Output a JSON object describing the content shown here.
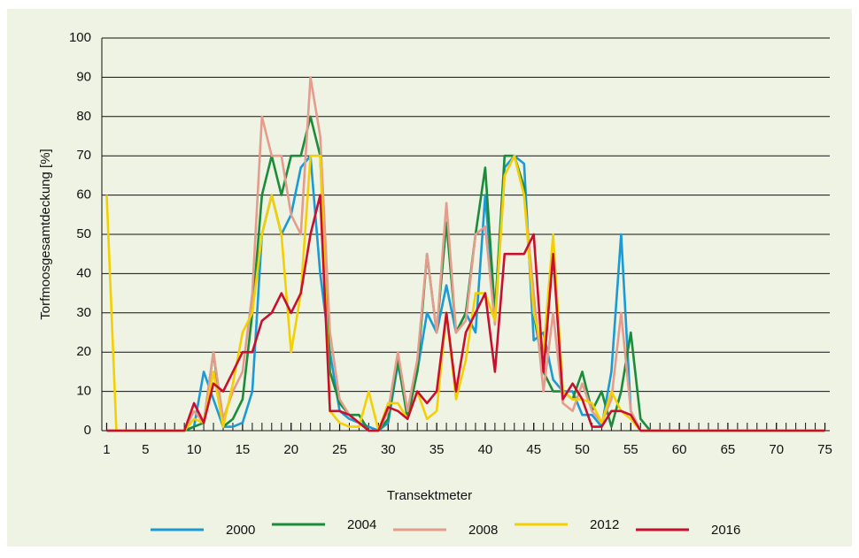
{
  "chart_data": {
    "type": "line",
    "xlabel": "Transektmeter",
    "ylabel": "Torfmoosgesamtdeckung [%]",
    "x": [
      1,
      2,
      3,
      4,
      5,
      6,
      7,
      8,
      9,
      10,
      11,
      12,
      13,
      14,
      15,
      16,
      17,
      18,
      19,
      20,
      21,
      22,
      23,
      24,
      25,
      26,
      27,
      28,
      29,
      30,
      31,
      32,
      33,
      34,
      35,
      36,
      37,
      38,
      39,
      40,
      41,
      42,
      43,
      44,
      45,
      46,
      47,
      48,
      49,
      50,
      51,
      52,
      53,
      54,
      55,
      56,
      57,
      58,
      59,
      60,
      61,
      62,
      63,
      64,
      65,
      66,
      67,
      68,
      69,
      70,
      71,
      72,
      73,
      74,
      75
    ],
    "series": [
      {
        "name": "2000",
        "color": "#1a9ad6",
        "values": [
          0,
          0,
          0,
          0,
          0,
          0,
          0,
          0,
          0,
          1,
          15,
          8,
          1,
          1,
          2,
          10,
          50,
          60,
          50,
          55,
          67,
          70,
          40,
          20,
          5,
          3,
          2,
          1,
          0,
          2,
          17,
          5,
          15,
          30,
          25,
          37,
          25,
          30,
          25,
          60,
          30,
          67,
          70,
          68,
          23,
          25,
          13,
          10,
          10,
          4,
          4,
          1,
          15,
          50,
          5,
          0,
          0,
          0,
          0,
          0,
          0,
          0,
          0,
          0,
          0,
          0,
          0,
          0,
          0,
          0,
          0,
          0,
          0,
          0,
          0
        ]
      },
      {
        "name": "2004",
        "color": "#1a8c3a",
        "values": [
          0,
          0,
          0,
          0,
          0,
          0,
          0,
          0,
          0,
          1,
          2,
          20,
          1,
          3,
          8,
          30,
          60,
          70,
          60,
          70,
          70,
          80,
          70,
          15,
          7,
          4,
          4,
          0,
          0,
          3,
          18,
          3,
          15,
          45,
          25,
          53,
          25,
          30,
          50,
          67,
          30,
          70,
          70,
          62,
          30,
          15,
          10,
          10,
          8,
          15,
          5,
          10,
          1,
          10,
          25,
          3,
          0,
          0,
          0,
          0,
          0,
          0,
          0,
          0,
          0,
          0,
          0,
          0,
          0,
          0,
          0,
          0,
          0,
          0,
          0
        ]
      },
      {
        "name": "2008",
        "color": "#e59c8c",
        "values": [
          0,
          0,
          0,
          0,
          0,
          0,
          0,
          0,
          0,
          5,
          2,
          20,
          3,
          10,
          15,
          35,
          80,
          70,
          70,
          55,
          50,
          90,
          75,
          25,
          8,
          4,
          2,
          0,
          0,
          5,
          20,
          5,
          18,
          45,
          25,
          58,
          25,
          28,
          50,
          52,
          27,
          65,
          70,
          60,
          35,
          10,
          30,
          7,
          5,
          12,
          5,
          2,
          8,
          30,
          5,
          0,
          0,
          0,
          0,
          0,
          0,
          0,
          0,
          0,
          0,
          0,
          0,
          0,
          0,
          0,
          0,
          0,
          0,
          0,
          0
        ]
      },
      {
        "name": "2012",
        "color": "#f5d000",
        "values": [
          60,
          0,
          0,
          0,
          0,
          0,
          0,
          0,
          0,
          3,
          2,
          15,
          1,
          12,
          25,
          30,
          50,
          60,
          50,
          20,
          35,
          70,
          70,
          5,
          2,
          1,
          1,
          10,
          0,
          7,
          7,
          3,
          10,
          3,
          5,
          30,
          8,
          18,
          35,
          35,
          28,
          65,
          70,
          60,
          30,
          20,
          50,
          10,
          8,
          8,
          7,
          2,
          10,
          5,
          3,
          0,
          0,
          0,
          0,
          0,
          0,
          0,
          0,
          0,
          0,
          0,
          0,
          0,
          0,
          0,
          0,
          0,
          0,
          0,
          0
        ]
      },
      {
        "name": "2016",
        "color": "#c8102e",
        "values": [
          0,
          0,
          0,
          0,
          0,
          0,
          0,
          0,
          0,
          7,
          2,
          12,
          10,
          15,
          20,
          20,
          28,
          30,
          35,
          30,
          35,
          50,
          60,
          5,
          5,
          4,
          2,
          0,
          0,
          6,
          5,
          3,
          10,
          7,
          10,
          30,
          10,
          25,
          30,
          35,
          15,
          45,
          45,
          45,
          50,
          15,
          45,
          8,
          12,
          8,
          1,
          1,
          5,
          5,
          4,
          0,
          0,
          0,
          0,
          0,
          0,
          0,
          0,
          0,
          0,
          0,
          0,
          0,
          0,
          0,
          0,
          0,
          0,
          0,
          0
        ]
      }
    ],
    "xlim": [
      0.5,
      75.5
    ],
    "xticks": [
      1,
      5,
      10,
      15,
      20,
      25,
      30,
      35,
      40,
      45,
      50,
      55,
      60,
      65,
      70,
      75
    ],
    "ylim": [
      0,
      100
    ],
    "yticks": [
      0,
      10,
      20,
      30,
      40,
      50,
      60,
      70,
      80,
      90,
      100
    ],
    "grid": true
  }
}
